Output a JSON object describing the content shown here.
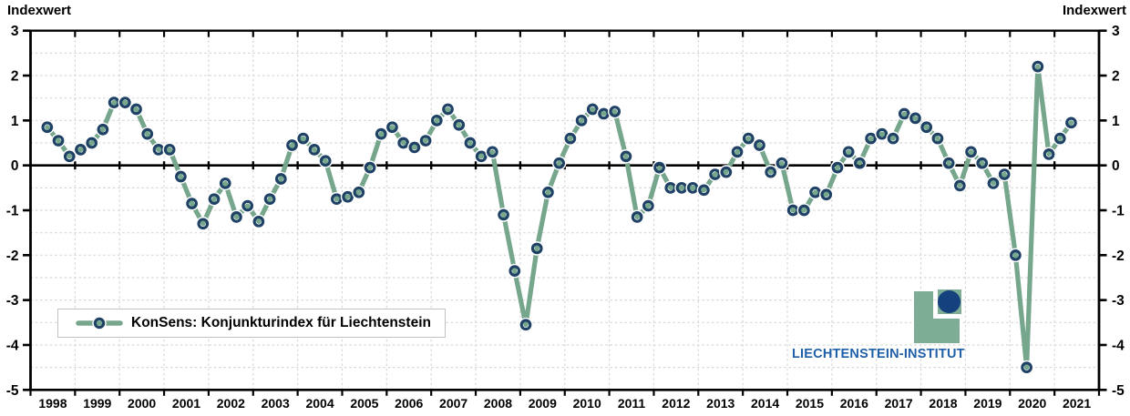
{
  "axis_titles": {
    "left": "Indexwert",
    "right": "Indexwert"
  },
  "legend": {
    "label": "KonSens: Konjunkturindex für Liechtenstein"
  },
  "logo": {
    "text": "LIECHTENSTEIN-INSTITUT"
  },
  "chart_data": {
    "type": "line",
    "series_name": "KonSens: Konjunkturindex für Liechtenstein",
    "frequency": "quarterly",
    "start_year": 1998,
    "start_quarter": 2,
    "end": "2021Q2",
    "ylim": [
      -5,
      3
    ],
    "y_ticks": [
      3,
      2,
      1,
      0,
      -1,
      -2,
      -3,
      -4,
      -5
    ],
    "grid": "dashed every 0.5, vertical at year boundaries",
    "legend_position": "inside lower-left",
    "x_year_labels": [
      "1998",
      "1999",
      "2000",
      "2001",
      "2002",
      "2003",
      "2004",
      "2005",
      "2006",
      "2007",
      "2008",
      "2009",
      "2010",
      "2011",
      "2012",
      "2013",
      "2014",
      "2015",
      "2016",
      "2017",
      "2018",
      "2019",
      "2020",
      "2021"
    ],
    "values": [
      0.85,
      0.55,
      0.2,
      0.35,
      0.5,
      0.8,
      1.4,
      1.4,
      1.25,
      0.7,
      0.35,
      0.35,
      -0.25,
      -0.85,
      -1.3,
      -0.75,
      -0.4,
      -1.15,
      -0.9,
      -1.25,
      -0.75,
      -0.3,
      0.45,
      0.6,
      0.35,
      0.1,
      -0.75,
      -0.7,
      -0.6,
      -0.05,
      0.7,
      0.85,
      0.5,
      0.4,
      0.55,
      1.0,
      1.25,
      0.9,
      0.5,
      0.2,
      0.3,
      -1.1,
      -2.35,
      -3.55,
      -1.85,
      -0.6,
      0.05,
      0.6,
      1.0,
      1.25,
      1.15,
      1.2,
      0.2,
      -1.15,
      -0.9,
      -0.05,
      -0.5,
      -0.5,
      -0.5,
      -0.55,
      -0.2,
      -0.15,
      0.3,
      0.6,
      0.45,
      -0.15,
      0.05,
      -1.0,
      -1.0,
      -0.6,
      -0.65,
      -0.05,
      0.3,
      0.05,
      0.6,
      0.7,
      0.6,
      1.15,
      1.05,
      0.85,
      0.6,
      0.05,
      -0.45,
      0.3,
      0.05,
      -0.4,
      -0.2,
      -2.0,
      -4.5,
      2.2,
      0.25,
      0.6,
      0.95
    ],
    "colors": {
      "line": "#76a68c",
      "marker_ring": "#1e4165",
      "marker_halo": "#ffffff",
      "grid": "#d8d8d8",
      "axis": "#000000",
      "logo_green": "#7ead95",
      "logo_navy": "#15417e",
      "logo_text": "#2060a8"
    }
  }
}
